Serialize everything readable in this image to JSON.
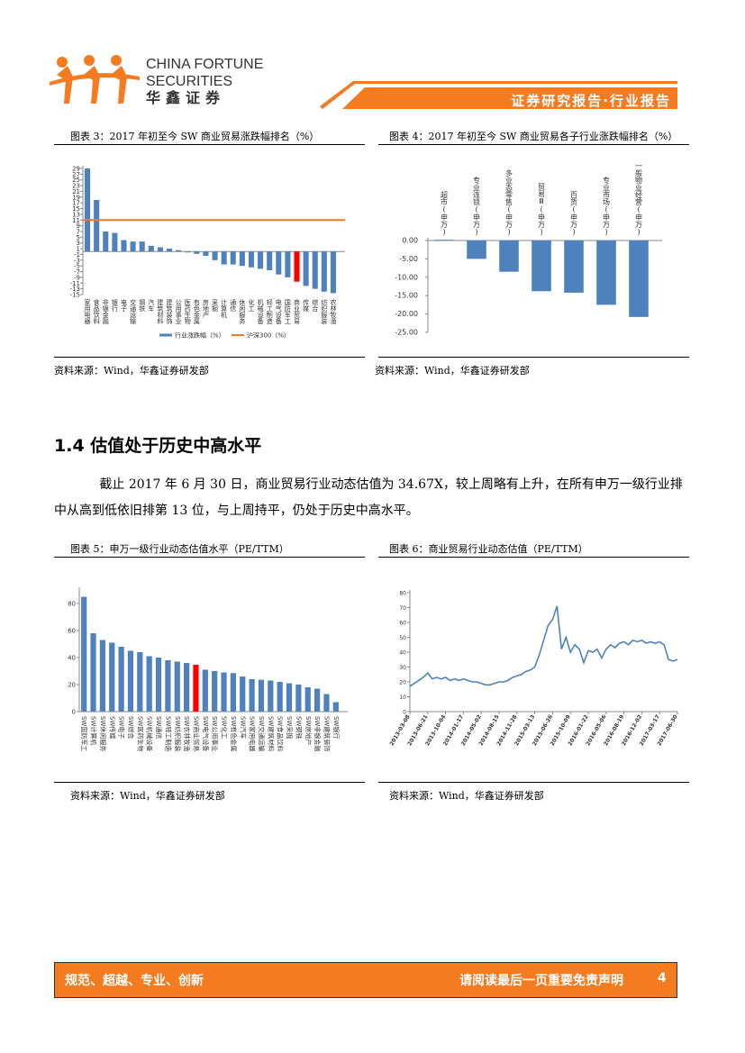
{
  "header": {
    "brand_en_1": "CHINA FORTUNE",
    "brand_en_2": "SECURITIES",
    "brand_cn": "华鑫证券",
    "report_type": "证券研究报告·行业报告"
  },
  "section": {
    "heading": "1.4 估值处于历史中高水平",
    "paragraph": "截止 2017 年 6 月 30 日，商业贸易行业动态估值为 34.67X，较上周略有上升，在所有申万一级行业排中从高到低依旧排第 13 位，与上周持平，仍处于历史中高水平。"
  },
  "footer": {
    "motto": "规范、超越、专业、创新",
    "disclaimer": "请阅读最后一页重要免责声明",
    "page": "4"
  },
  "chart_data": [
    {
      "type": "bar",
      "title": "图表 3：2017 年初至今 SW 商业贸易涨跌幅排名（%）",
      "source": "资料来源：Wind，华鑫证券研发部",
      "categories": [
        "家用电器",
        "食品饮料",
        "非银金融",
        "银行",
        "电子",
        "交通运输",
        "钢铁",
        "汽车",
        "建筑材料",
        "建筑装饰",
        "公用事业",
        "医药生物",
        "有色金属",
        "房地产",
        "采掘",
        "计算机",
        "通信",
        "休闲服务",
        "化工",
        "机械设备",
        "轻工制造",
        "电气设备",
        "国防军工",
        "商业贸易",
        "传媒",
        "综合",
        "纺织服装",
        "农林牧渔"
      ],
      "series": [
        {
          "name": "行业涨跌幅（%）",
          "color": "#4f81bd",
          "values": [
            29,
            18,
            7,
            6.5,
            4,
            3.5,
            3.5,
            2,
            1.5,
            1,
            0.5,
            -0.3,
            -0.8,
            -1.5,
            -3,
            -4.5,
            -4.5,
            -5,
            -5.5,
            -6,
            -6.5,
            -8,
            -9,
            -10.5,
            -12,
            -13,
            -14,
            -14.5
          ]
        }
      ],
      "highlight": {
        "category": "商业贸易",
        "color": "#ff0000"
      },
      "reference": {
        "name": "沪深300（%）",
        "value": 11,
        "color": "#f07a28"
      },
      "ylim": [
        -15,
        29
      ],
      "yticks": [
        29,
        27,
        25,
        23,
        21,
        19,
        17,
        15,
        13,
        11,
        9,
        7,
        5,
        3,
        1,
        -1,
        -3,
        -5,
        -7,
        -9,
        -11,
        -13,
        -15
      ],
      "legend": "bottom"
    },
    {
      "type": "bar",
      "title": "图表 4：2017 年初至今 SW 商业贸易各子行业涨跌幅排名（%）",
      "source": "资料来源：Wind，华鑫证券研发部",
      "categories": [
        "超市(申万)",
        "专业连锁(申万)",
        "多业态零售(申万)",
        "贸易Ⅲ(申万)",
        "百货(申万)",
        "专业市场(申万)",
        "一般物业经营(申万)"
      ],
      "series": [
        {
          "name": "涨跌幅",
          "color": "#4f81bd",
          "values": [
            0.2,
            -5,
            -8.5,
            -13.8,
            -14.2,
            -17.5,
            -20.8
          ]
        }
      ],
      "ylim": [
        -25,
        0
      ],
      "yticks": [
        {
          "value": 0,
          "label": "0.00"
        },
        {
          "value": -5,
          "label": "-5.00"
        },
        {
          "value": -10,
          "label": "-10.00"
        },
        {
          "value": -15,
          "label": "-15.00"
        },
        {
          "value": -20,
          "label": "-20.00"
        },
        {
          "value": -25,
          "label": "-25.00"
        }
      ]
    },
    {
      "type": "bar",
      "title": "图表 5：申万一级行业动态估值水平（PE/TTM）",
      "source": "资料来源：Wind，华鑫证券研发部",
      "categories": [
        "SW国防军工",
        "SW计算机",
        "SW休闲服务",
        "SW传媒",
        "SW电子",
        "SW综合",
        "SW医药生物",
        "SW机械设备",
        "SW通信",
        "SW轻工制造",
        "SW纺织服装",
        "SW农林牧渔",
        "SW商业贸易",
        "SW电气设备",
        "SW公用事业",
        "SW化工",
        "SW有色金属",
        "SW汽车",
        "SW家用电器",
        "SW交通运输",
        "SW建筑材料",
        "SW食品饮料",
        "SW采掘",
        "SW钢铁",
        "SW房地产",
        "SW非银金融",
        "SW建筑装饰",
        "SW银行"
      ],
      "series": [
        {
          "name": "PE/TTM",
          "color": "#4f81bd",
          "values": [
            85,
            58,
            53,
            51,
            48,
            45,
            44,
            41,
            40,
            38,
            37,
            36,
            34.67,
            31,
            30,
            29,
            28.5,
            26,
            24,
            23.5,
            23,
            22,
            21,
            20,
            18,
            17,
            13,
            7
          ]
        }
      ],
      "highlight": {
        "category": "SW商业贸易",
        "color": "#ff0000"
      },
      "ylim": [
        0,
        90
      ],
      "yticks": [
        0,
        20,
        40,
        60,
        80
      ]
    },
    {
      "type": "line",
      "title": "图表 6：商业贸易行业动态估值（PE/TTM）",
      "source": "资料来源：Wind，华鑫证券研发部",
      "x": [
        "2013-03-08",
        null,
        null,
        null,
        "2013-06-21",
        null,
        null,
        null,
        "2013-10-04",
        null,
        null,
        null,
        "2014-01-17",
        null,
        null,
        null,
        "2014-05-02",
        null,
        null,
        null,
        "2014-08-15",
        null,
        null,
        null,
        "2014-11-28",
        null,
        null,
        null,
        "2015-03-13",
        null,
        null,
        null,
        "2015-06-26",
        null,
        null,
        null,
        "2015-10-09",
        null,
        null,
        null,
        "2016-01-22",
        null,
        null,
        null,
        "2016-05-06",
        null,
        null,
        null,
        "2016-08-19",
        null,
        null,
        null,
        "2016-12-02",
        null,
        null,
        null,
        "2017-03-17",
        null,
        null,
        null,
        "2017-06-30"
      ],
      "series": [
        {
          "name": "PE/TTM",
          "color": "#4f81bd",
          "values": [
            17,
            19,
            21,
            23,
            26,
            22,
            23,
            22,
            23,
            21,
            22,
            21,
            22,
            21,
            20,
            20,
            19,
            18,
            18,
            19,
            20,
            20,
            21,
            23,
            24,
            25,
            27,
            28,
            30,
            38,
            48,
            58,
            62,
            71,
            42,
            50,
            40,
            45,
            42,
            33,
            41,
            40,
            42,
            36,
            42,
            45,
            43,
            46,
            47,
            45,
            48,
            47,
            48,
            46,
            47,
            46,
            47,
            45,
            35,
            34,
            35
          ]
        }
      ],
      "ylim": [
        0,
        80
      ],
      "yticks": [
        0,
        10,
        20,
        30,
        40,
        50,
        60,
        70,
        80
      ]
    }
  ]
}
